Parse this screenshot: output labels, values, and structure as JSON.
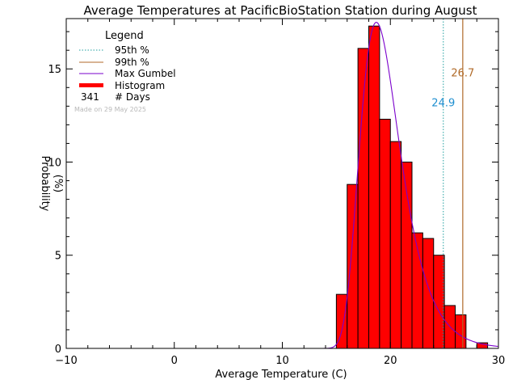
{
  "chart_data": {
    "type": "bar",
    "title": "Average Temperatures at PacificBioStation Station during August",
    "xlabel": "Average Temperature (C)",
    "ylabel_line1": "Probability",
    "ylabel_line2": "(%)",
    "xlim": [
      -10,
      30
    ],
    "ylim": [
      0,
      17.7
    ],
    "xticks": [
      {
        "value": -10,
        "label": "−10"
      },
      {
        "value": 0,
        "label": "0"
      },
      {
        "value": 10,
        "label": "10"
      },
      {
        "value": 20,
        "label": "20"
      },
      {
        "value": 30,
        "label": "30"
      }
    ],
    "yticks": [
      {
        "value": 0,
        "label": "0"
      },
      {
        "value": 5,
        "label": "5"
      },
      {
        "value": 10,
        "label": "10"
      },
      {
        "value": 15,
        "label": "15"
      }
    ],
    "bin_width": 1,
    "bins": [
      {
        "x": 15,
        "y": 2.9
      },
      {
        "x": 16,
        "y": 8.8
      },
      {
        "x": 17,
        "y": 16.1
      },
      {
        "x": 18,
        "y": 17.3
      },
      {
        "x": 19,
        "y": 12.3
      },
      {
        "x": 20,
        "y": 11.1
      },
      {
        "x": 21,
        "y": 10.0
      },
      {
        "x": 22,
        "y": 6.2
      },
      {
        "x": 23,
        "y": 5.9
      },
      {
        "x": 24,
        "y": 5.0
      },
      {
        "x": 25,
        "y": 2.3
      },
      {
        "x": 26,
        "y": 1.8
      },
      {
        "x": 28,
        "y": 0.3
      }
    ],
    "p95": {
      "value": 24.9,
      "label": "24.9",
      "label_y": 13.0,
      "color": "#1f8fd0"
    },
    "p99": {
      "value": 26.7,
      "label": "26.7",
      "label_y": 14.6,
      "color": "#b06a28"
    },
    "gumbel": {
      "mode": 18.7,
      "scale": 1.85,
      "peak": 17.5,
      "color": "#7a00cc"
    },
    "histogram_color": "#ff0000"
  },
  "legend": {
    "title": "Legend",
    "items": [
      {
        "label": "95th %",
        "color": "#1f9f9f",
        "style": "dotted"
      },
      {
        "label": "99th %",
        "color": "#b06a28",
        "style": "solid"
      },
      {
        "label": "Max Gumbel",
        "color": "#7a00cc",
        "style": "solid"
      },
      {
        "label": "Histogram",
        "color": "#ff0000",
        "style": "thick"
      }
    ],
    "days_count": "341",
    "days_label": "# Days",
    "made_on": "Made on 29 May 2025"
  }
}
